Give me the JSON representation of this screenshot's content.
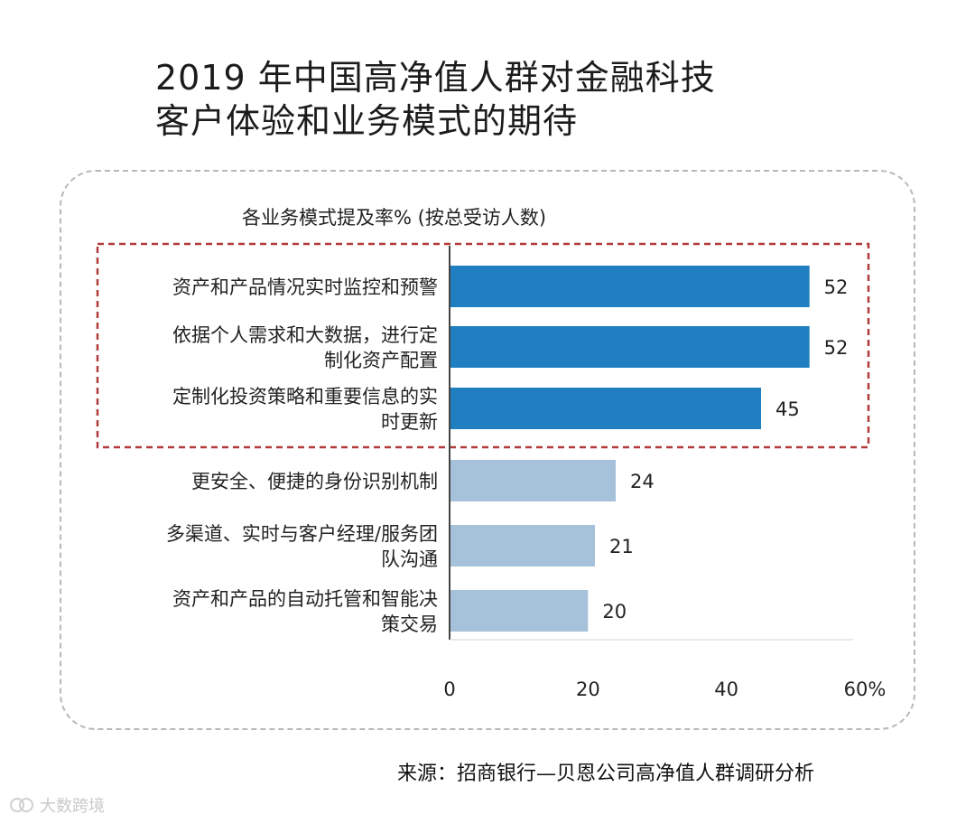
{
  "title_line1": "2019 年中国高净值人群对金融科技",
  "title_line2": "客户体验和业务模式的期待",
  "chart_data": {
    "type": "bar",
    "orientation": "horizontal",
    "subtitle": "各业务模式提及率% (按总受访人数)",
    "categories": [
      [
        "资产和产品情况实时监控和预警"
      ],
      [
        "依据个人需求和大数据，进行定",
        "制化资产配置"
      ],
      [
        "定制化投资策略和重要信息的实",
        "时更新"
      ],
      [
        "更安全、便捷的身份识别机制"
      ],
      [
        "多渠道、实时与客户经理/服务团",
        "队沟通"
      ],
      [
        "资产和产品的自动托管和智能决",
        "策交易"
      ]
    ],
    "values": [
      52,
      52,
      45,
      24,
      21,
      20
    ],
    "value_labels": [
      "52",
      "52",
      "45",
      "24",
      "21",
      "20"
    ],
    "highlighted": [
      true,
      true,
      true,
      false,
      false,
      false
    ],
    "xlim": [
      0,
      60
    ],
    "x_ticks": [
      0,
      20,
      40,
      60
    ],
    "x_tick_labels": [
      "0",
      "20",
      "40",
      "60%"
    ],
    "colors": {
      "highlight": "#1f7fc0",
      "normal": "#a6c1da",
      "box": "#b23a3a"
    },
    "grid": false
  },
  "source": "来源：招商银行—贝恩公司高净值人群调研分析",
  "watermark": "大数跨境"
}
